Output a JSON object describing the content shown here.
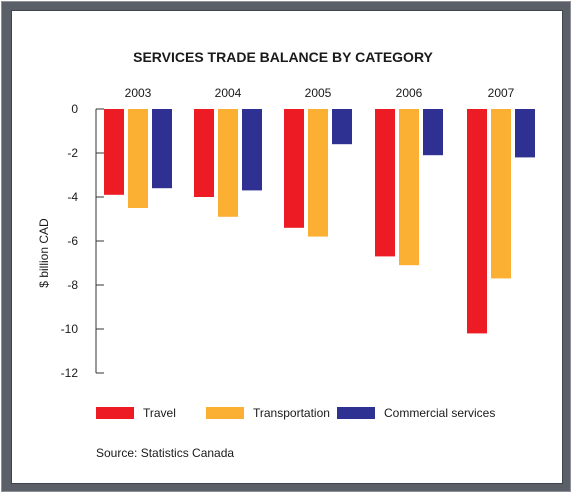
{
  "chart_data": {
    "type": "bar",
    "title": "SERVICES TRADE BALANCE BY CATEGORY",
    "ylabel": "$ billion CAD",
    "xlabel": "",
    "categories": [
      "2003",
      "2004",
      "2005",
      "2006",
      "2007"
    ],
    "series": [
      {
        "name": "Travel",
        "color": "#ed1c24",
        "values": [
          -3.9,
          -4.0,
          -5.4,
          -6.7,
          -10.2
        ]
      },
      {
        "name": "Transportation",
        "color": "#fbb034",
        "values": [
          -4.5,
          -4.9,
          -5.8,
          -7.1,
          -7.7
        ]
      },
      {
        "name": "Commercial services",
        "color": "#2e3192",
        "values": [
          -3.6,
          -3.7,
          -1.6,
          -2.1,
          -2.2
        ]
      }
    ],
    "ylim": [
      -12,
      0
    ],
    "yticks": [
      0,
      -2,
      -4,
      -6,
      -8,
      -10,
      -12
    ],
    "grid": false,
    "legend": "bottom",
    "source": "Source: Statistics Canada"
  }
}
